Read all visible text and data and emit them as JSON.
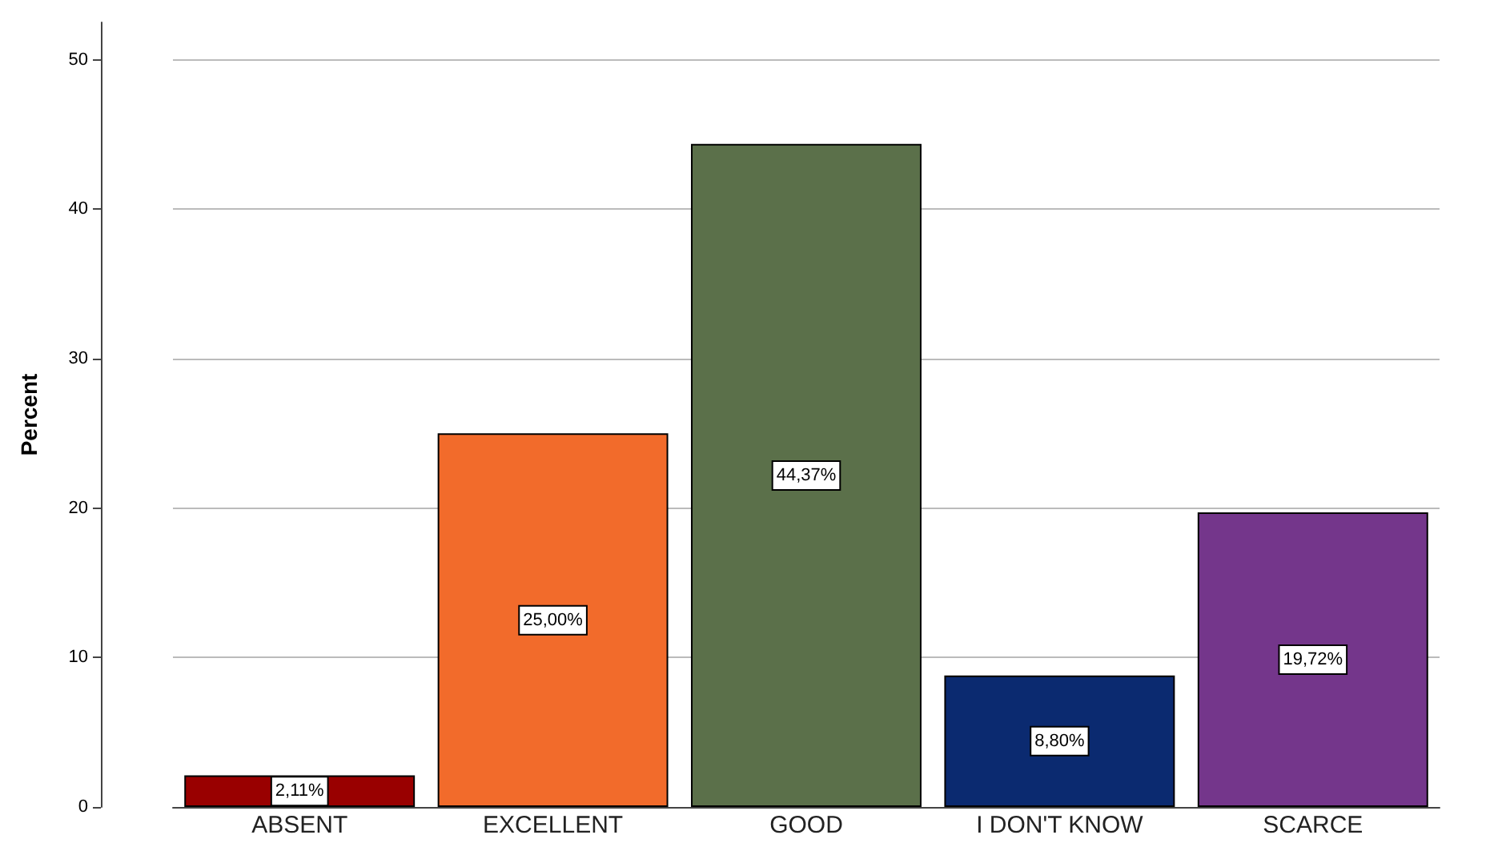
{
  "chart_data": {
    "type": "bar",
    "ylabel": "Percent",
    "categories": [
      "ABSENT",
      "EXCELLENT",
      "GOOD",
      "I DON'T KNOW",
      "SCARCE"
    ],
    "values": [
      2.11,
      25.0,
      44.37,
      8.8,
      19.72
    ],
    "value_labels": [
      "2,11%",
      "25,00%",
      "44,37%",
      "8,80%",
      "19,72%"
    ],
    "colors": [
      "#990000",
      "#f26b2b",
      "#5b704a",
      "#0b2a70",
      "#74368b"
    ],
    "ylim": [
      0,
      52.5
    ],
    "yticks": [
      0,
      10,
      20,
      30,
      40,
      50
    ],
    "grid": "y"
  }
}
